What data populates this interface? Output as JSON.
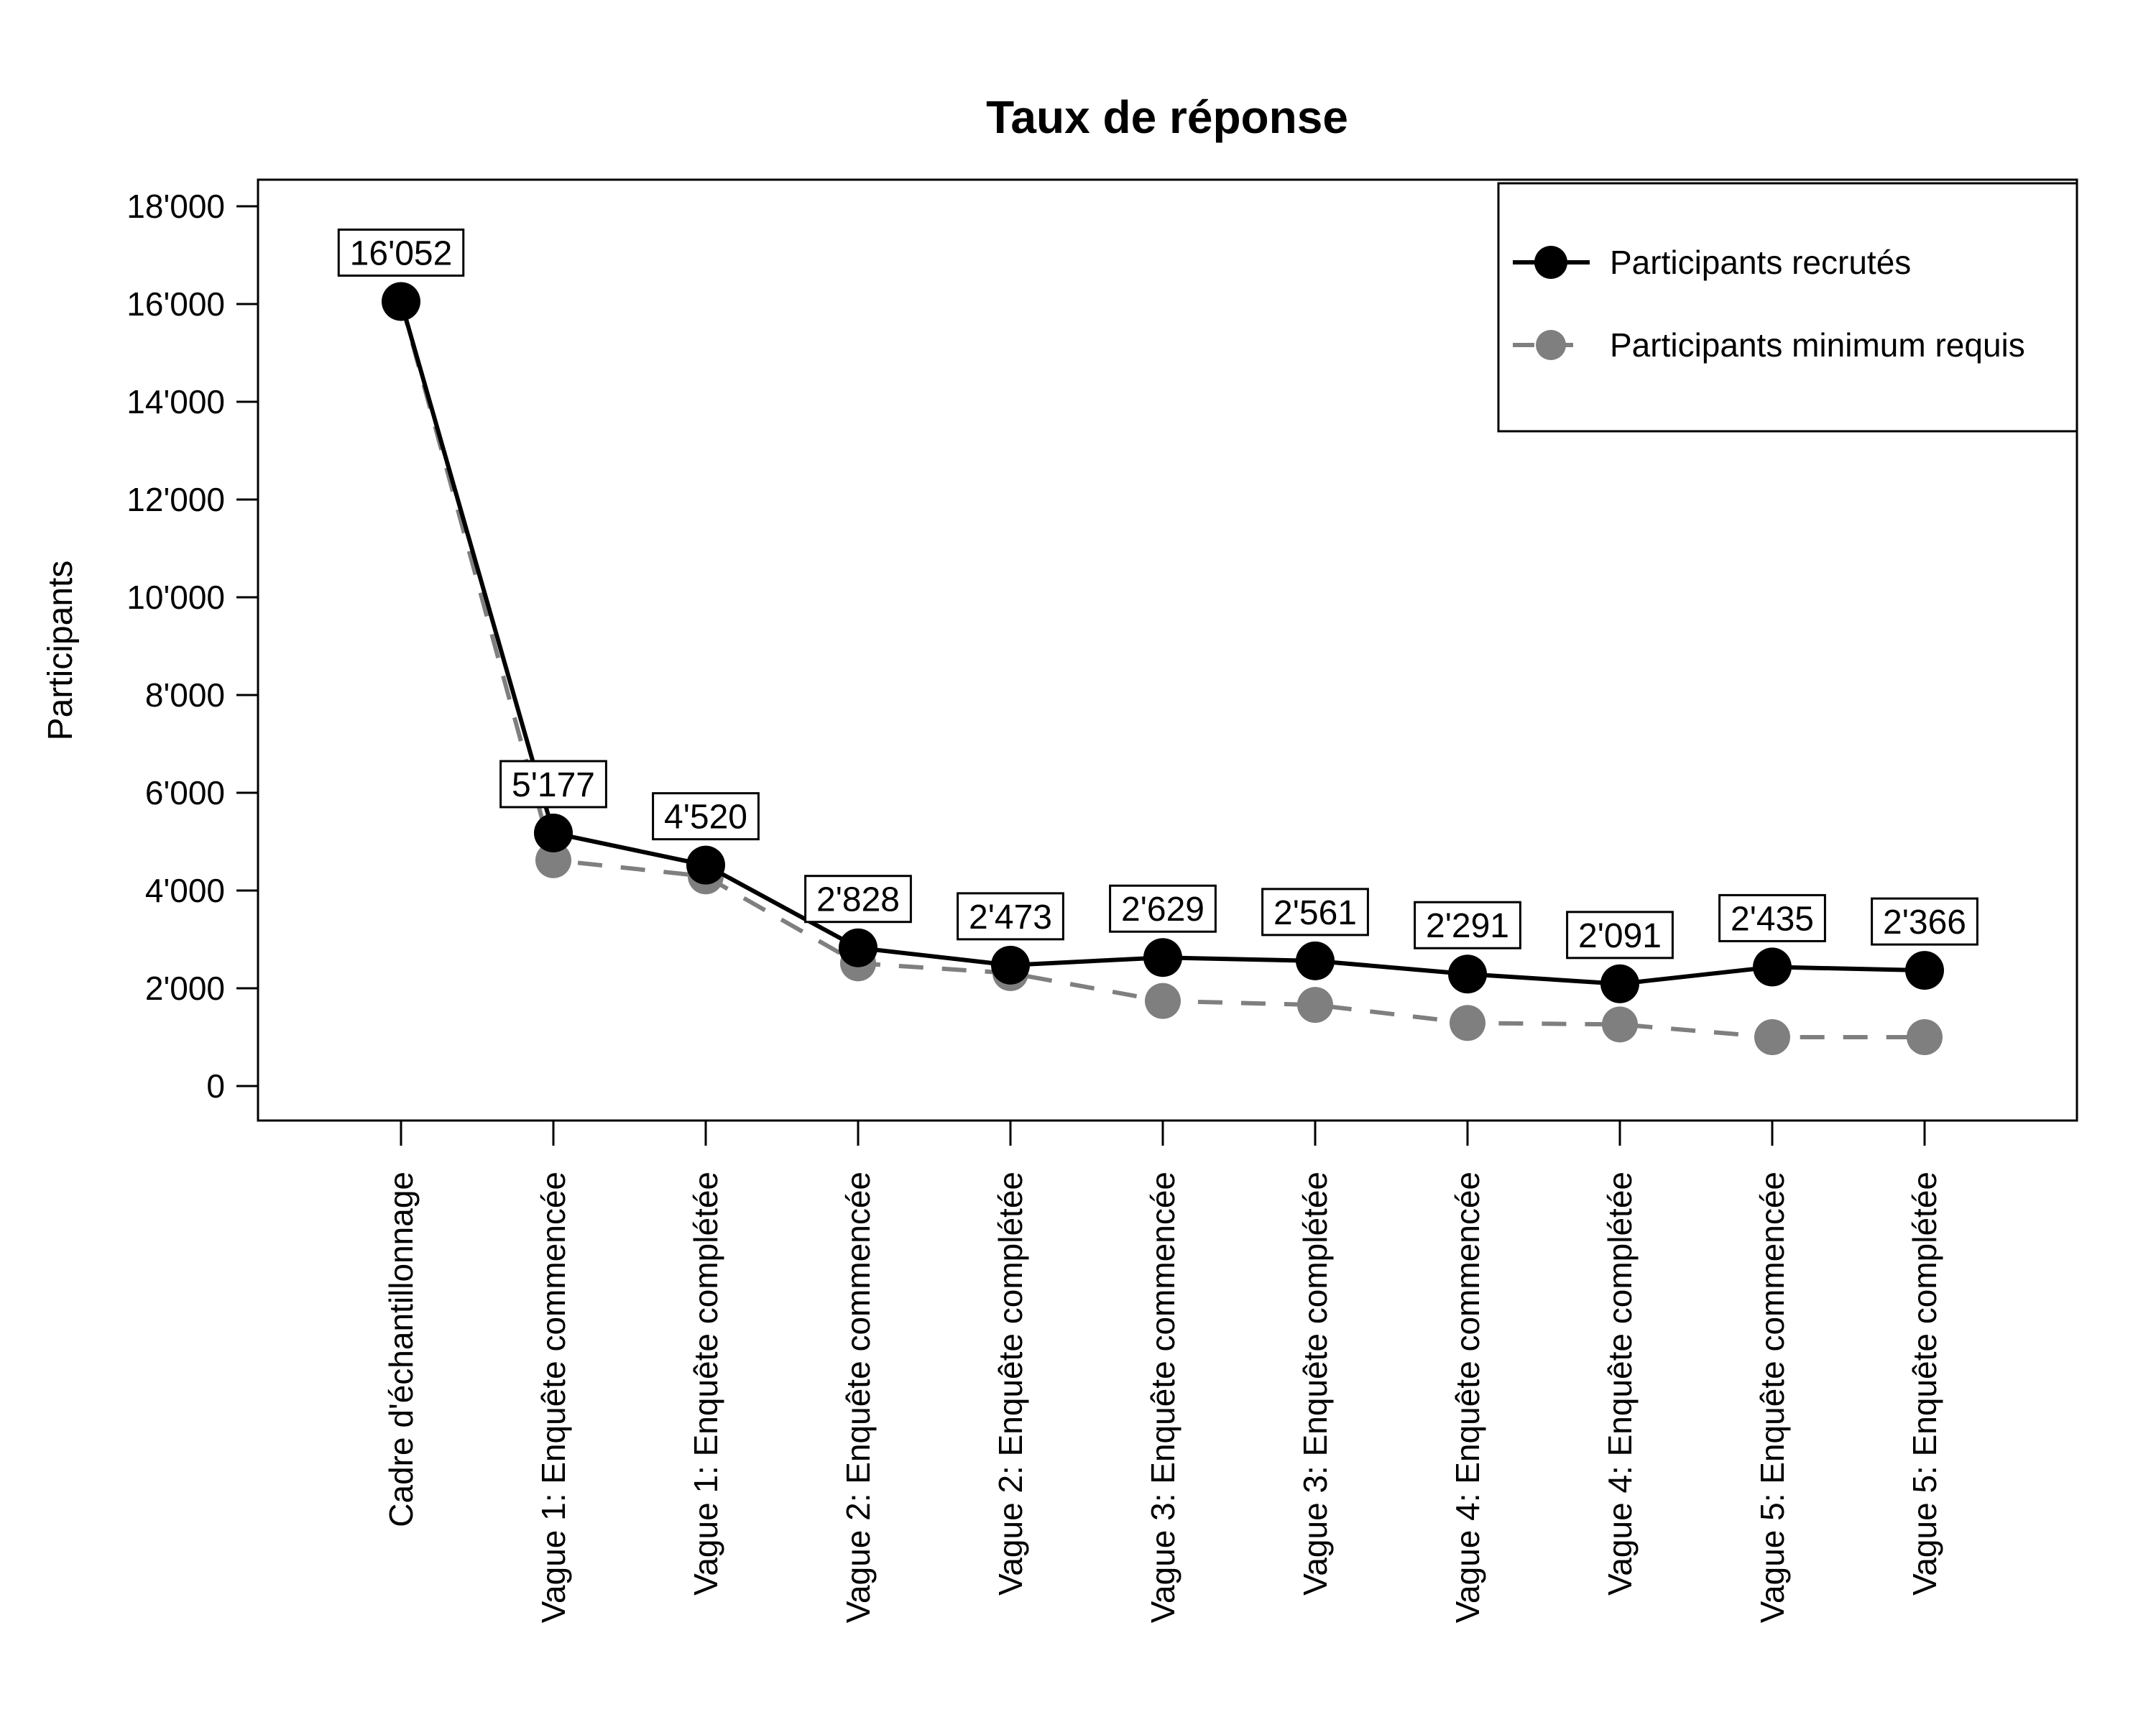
{
  "page": {
    "background": "#ffffff"
  },
  "chart_data": {
    "type": "line",
    "title": "Taux de réponse",
    "xlabel": "",
    "ylabel": "Participants",
    "ylim": [
      0,
      18000
    ],
    "grid": false,
    "legend_position": "top-right-inside",
    "number_format": "apostrophe-thousands",
    "categories": [
      "Cadre d'échantillonnage",
      "Vague 1: Enquête commencée",
      "Vague 1: Enquête complétée",
      "Vague 2: Enquête commencée",
      "Vague 2: Enquête complétée",
      "Vague 3: Enquête commencée",
      "Vague 3: Enquête complétée",
      "Vague 4: Enquête commencée",
      "Vague 4: Enquête complétée",
      "Vague 5: Enquête commencée",
      "Vague 5: Enquête complétée"
    ],
    "yticks": [
      {
        "value": 0,
        "label": "0"
      },
      {
        "value": 2000,
        "label": "2'000"
      },
      {
        "value": 4000,
        "label": "4'000"
      },
      {
        "value": 6000,
        "label": "6'000"
      },
      {
        "value": 8000,
        "label": "8'000"
      },
      {
        "value": 10000,
        "label": "10'000"
      },
      {
        "value": 12000,
        "label": "12'000"
      },
      {
        "value": 14000,
        "label": "14'000"
      },
      {
        "value": 16000,
        "label": "16'000"
      },
      {
        "value": 18000,
        "label": "18'000"
      }
    ],
    "series": [
      {
        "name": "Participants recrutés",
        "color": "#000000",
        "line_style": "solid",
        "marker": "filled-circle",
        "values": [
          16052,
          5177,
          4520,
          2828,
          2473,
          2629,
          2561,
          2291,
          2091,
          2435,
          2366
        ],
        "value_labels": [
          "16'052",
          "5'177",
          "4'520",
          "2'828",
          "2'473",
          "2'629",
          "2'561",
          "2'291",
          "2'091",
          "2'435",
          "2'366"
        ]
      },
      {
        "name": "Participants minimum requis",
        "color": "#7f7f7f",
        "line_style": "dashed",
        "marker": "filled-circle",
        "values": [
          16052,
          4620,
          4290,
          2510,
          2310,
          1740,
          1660,
          1290,
          1260,
          1000,
          1000
        ],
        "values_estimated": true
      }
    ]
  }
}
